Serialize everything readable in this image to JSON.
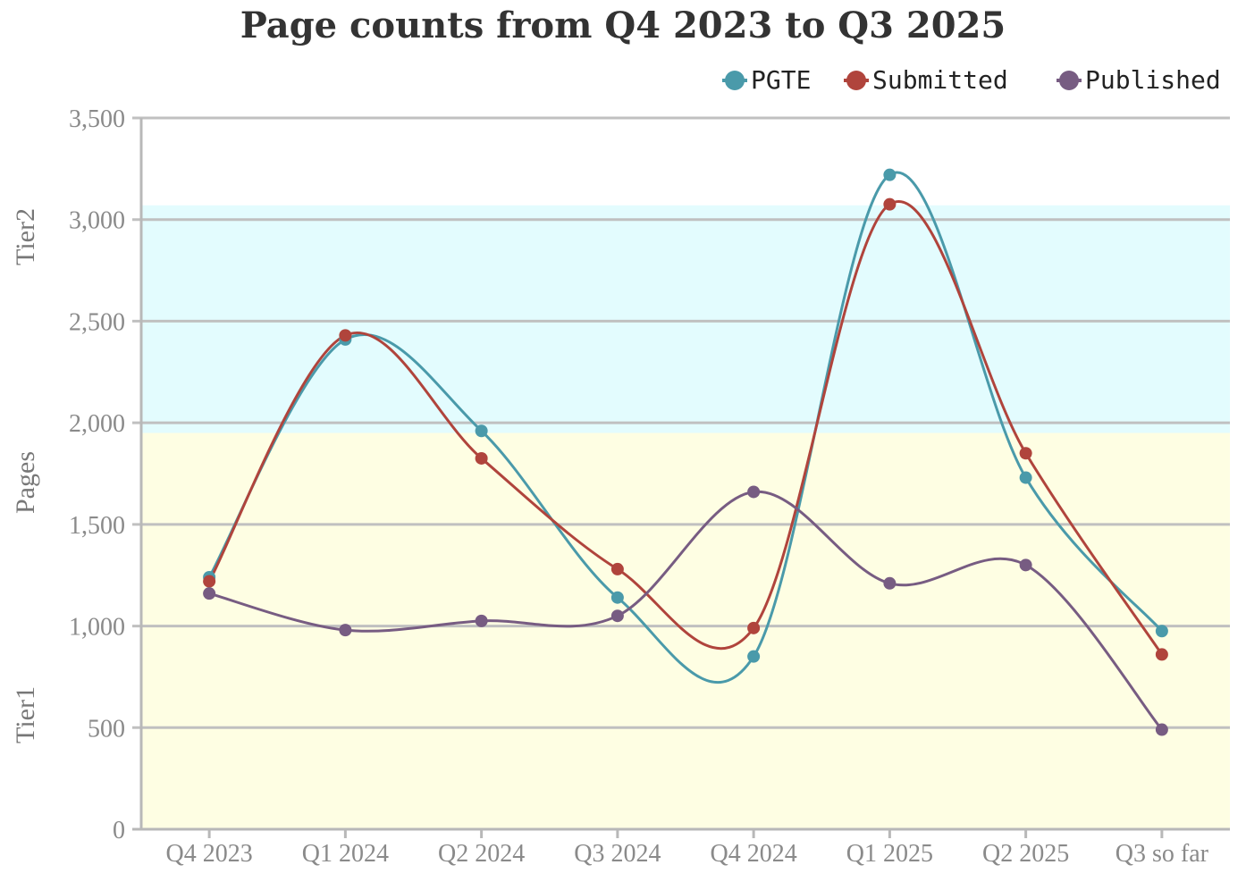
{
  "chart_data": {
    "type": "line",
    "title": "Page counts from Q4 2023 to Q3 2025",
    "xlabel": "",
    "ylabel": "Pages",
    "categories": [
      "Q4 2023",
      "Q1 2024",
      "Q2 2024",
      "Q3 2024",
      "Q4 2024",
      "Q1 2025",
      "Q2 2025",
      "Q3 so far"
    ],
    "ylim": [
      0,
      3500
    ],
    "yticks": [
      0,
      500,
      1000,
      1500,
      2000,
      2500,
      3000,
      3500
    ],
    "ytick_labels": [
      "0",
      "500",
      "1,000",
      "1,500",
      "2,000",
      "2,500",
      "3,000",
      "3,500"
    ],
    "grid": true,
    "legend_position": "top-right",
    "bands": [
      {
        "label": "Tier1",
        "from": 0,
        "to": 1950,
        "color": "#fefee3"
      },
      {
        "label": "Tier2",
        "from": 1950,
        "to": 3070,
        "color": "#e3fcfe"
      }
    ],
    "series": [
      {
        "name": "PGTE",
        "color": "#4a9aaa",
        "values": [
          1240,
          2410,
          1960,
          1140,
          850,
          3220,
          1730,
          975
        ]
      },
      {
        "name": "Submitted",
        "color": "#b0443c",
        "values": [
          1220,
          2430,
          1825,
          1280,
          990,
          3075,
          1850,
          860
        ]
      },
      {
        "name": "Published",
        "color": "#775c82",
        "values": [
          1160,
          980,
          1025,
          1050,
          1660,
          1210,
          1300,
          490
        ]
      }
    ]
  }
}
